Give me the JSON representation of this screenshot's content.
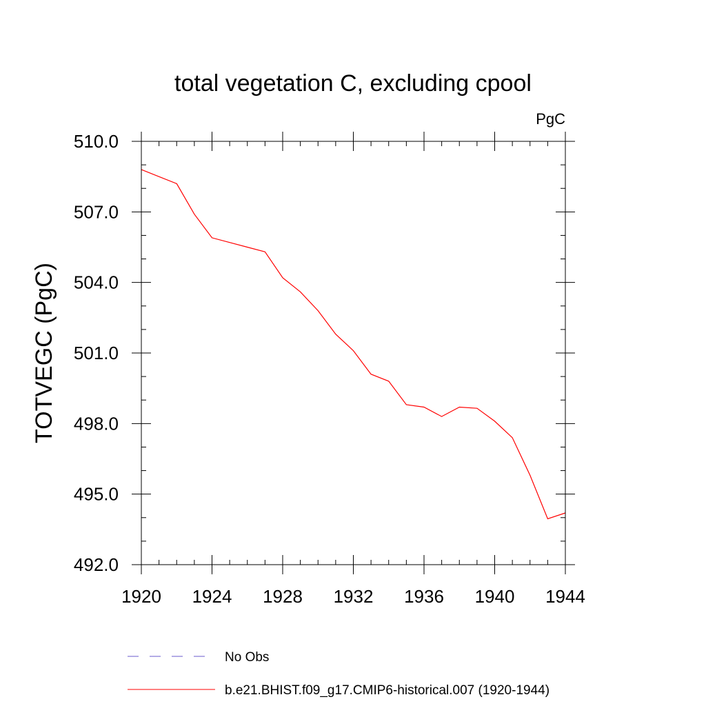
{
  "chart_data": {
    "type": "line",
    "title": "total vegetation C, excluding cpool",
    "units_label": "PgC",
    "ylabel": "TOTVEGC  (PgC)",
    "xlabel": "",
    "xlim": [
      1920,
      1944
    ],
    "ylim": [
      492.0,
      510.0
    ],
    "x_ticks": [
      1920,
      1924,
      1928,
      1932,
      1936,
      1940,
      1944
    ],
    "x_tick_labels": [
      "1920",
      "1924",
      "1928",
      "1932",
      "1936",
      "1940",
      "1944"
    ],
    "y_ticks": [
      492.0,
      495.0,
      498.0,
      501.0,
      504.0,
      507.0,
      510.0
    ],
    "y_tick_labels": [
      "492.0",
      "495.0",
      "498.0",
      "501.0",
      "504.0",
      "507.0",
      "510.0"
    ],
    "x_minor_step": 1,
    "y_minor_step": 1,
    "grid": false,
    "legend_position": "bottom",
    "series": [
      {
        "name": "b.e21.BHIST.f09_g17.CMIP6-historical.007 (1920-1944)",
        "color": "#ff0000",
        "dash": "solid",
        "x": [
          1920,
          1921,
          1922,
          1923,
          1924,
          1925,
          1926,
          1927,
          1928,
          1929,
          1930,
          1931,
          1932,
          1933,
          1934,
          1935,
          1936,
          1937,
          1938,
          1939,
          1940,
          1941,
          1942,
          1943,
          1944
        ],
        "y": [
          508.8,
          508.5,
          508.2,
          506.9,
          505.9,
          505.7,
          505.5,
          505.3,
          504.2,
          503.6,
          502.8,
          501.8,
          501.1,
          500.1,
          499.8,
          498.8,
          498.7,
          498.3,
          498.7,
          498.65,
          498.1,
          497.4,
          495.8,
          493.95,
          494.2
        ]
      },
      {
        "name": "No Obs",
        "color": "#6a5acd",
        "dash": "dashed",
        "x": [],
        "y": []
      }
    ]
  }
}
